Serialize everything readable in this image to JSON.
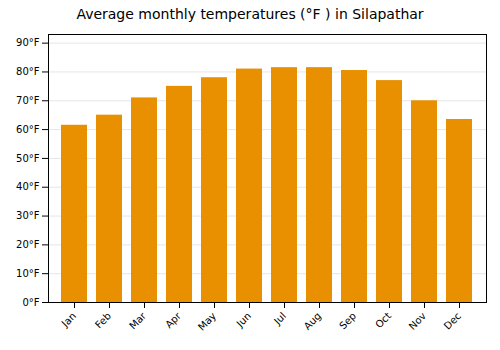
{
  "chart_data": {
    "type": "bar",
    "title": "Average monthly temperatures (°F ) in Silapathar",
    "categories": [
      "Jan",
      "Feb",
      "Mar",
      "Apr",
      "May",
      "Jun",
      "Jul",
      "Aug",
      "Sep",
      "Oct",
      "Nov",
      "Dec"
    ],
    "values": [
      61.5,
      65.0,
      71.0,
      75.0,
      78.0,
      81.0,
      81.5,
      81.5,
      80.5,
      77.0,
      70.0,
      63.5
    ],
    "color": "#E89000",
    "ylim": [
      0,
      93
    ],
    "yticks": [
      {
        "value": 0,
        "label": "0°F"
      },
      {
        "value": 10,
        "label": "10°F"
      },
      {
        "value": 20,
        "label": "20°F"
      },
      {
        "value": 30,
        "label": "30°F"
      },
      {
        "value": 40,
        "label": "40°F"
      },
      {
        "value": 50,
        "label": "50°F"
      },
      {
        "value": 60,
        "label": "60°F"
      },
      {
        "value": 70,
        "label": "70°F"
      },
      {
        "value": 80,
        "label": "80°F"
      },
      {
        "value": 90,
        "label": "90°F"
      }
    ],
    "grid": true
  }
}
